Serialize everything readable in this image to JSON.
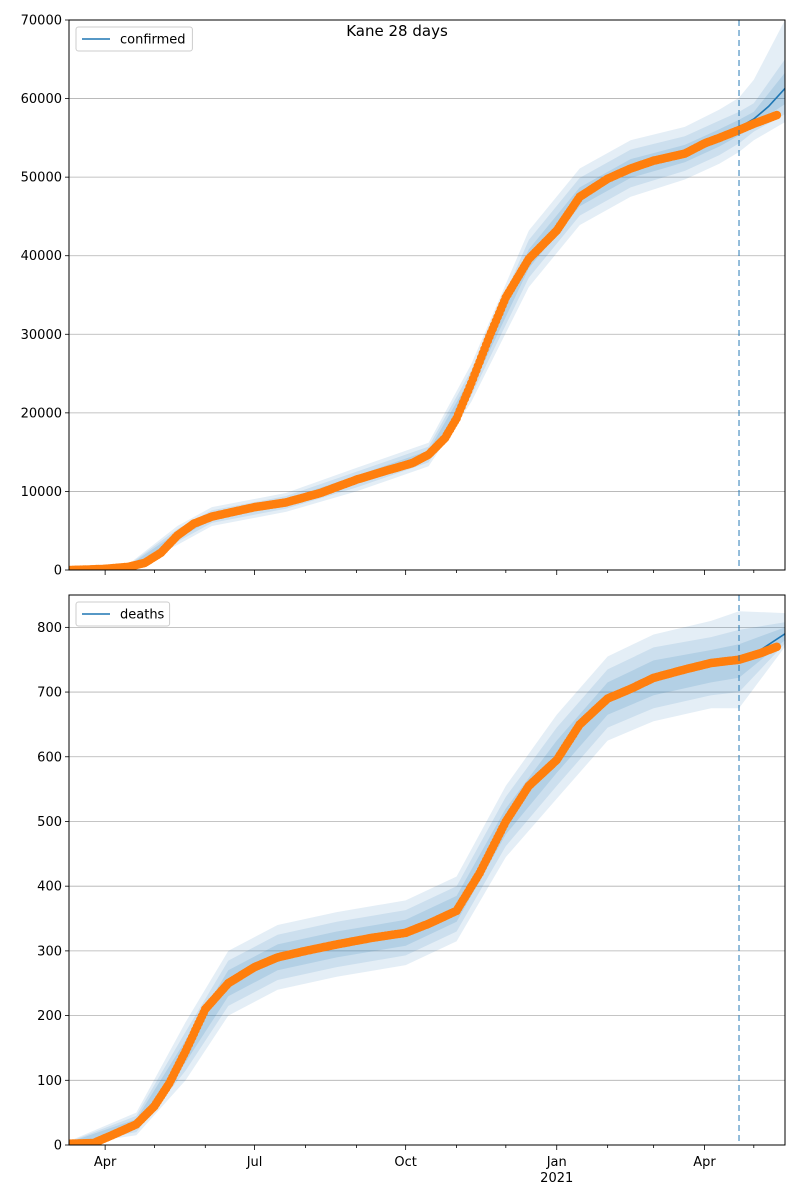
{
  "chart_data": [
    {
      "type": "line",
      "title": "Kane 28 days",
      "xlabel": "",
      "ylabel": "",
      "x_unit": "date",
      "xlim": [
        "2020-03-10",
        "2021-05-20"
      ],
      "ylim": [
        0,
        70000
      ],
      "yticks": [
        0,
        10000,
        20000,
        30000,
        40000,
        50000,
        60000,
        70000
      ],
      "grid": "y",
      "legend": {
        "position": "top-left",
        "entries": [
          "confirmed"
        ]
      },
      "forecast_start": "2021-04-22",
      "series": [
        {
          "name": "confirmed",
          "role": "model",
          "color": "#1f77b4",
          "x": [
            "2020-03-10",
            "2020-03-20",
            "2020-04-01",
            "2020-04-15",
            "2020-04-25",
            "2020-05-05",
            "2020-05-15",
            "2020-05-25",
            "2020-06-05",
            "2020-06-20",
            "2020-07-01",
            "2020-07-20",
            "2020-08-10",
            "2020-09-01",
            "2020-09-20",
            "2020-10-05",
            "2020-10-15",
            "2020-10-25",
            "2020-11-01",
            "2020-11-10",
            "2020-11-20",
            "2020-12-01",
            "2020-12-15",
            "2021-01-01",
            "2021-01-15",
            "2021-02-01",
            "2021-02-15",
            "2021-03-01",
            "2021-03-20",
            "2021-04-01",
            "2021-04-10",
            "2021-04-22",
            "2021-05-01",
            "2021-05-10",
            "2021-05-20"
          ],
          "y": [
            0,
            50,
            150,
            400,
            900,
            2200,
            4400,
            5900,
            6800,
            7500,
            8000,
            8600,
            9800,
            11500,
            12700,
            13600,
            14700,
            16800,
            19300,
            23800,
            29200,
            34700,
            39600,
            43200,
            47500,
            49800,
            51100,
            52100,
            53000,
            54300,
            55000,
            56300,
            57400,
            59000,
            61300
          ]
        },
        {
          "name": "confirmed",
          "role": "observed",
          "color": "#ff7f0e",
          "x": [
            "2020-03-10",
            "2020-03-20",
            "2020-04-01",
            "2020-04-15",
            "2020-04-25",
            "2020-05-05",
            "2020-05-15",
            "2020-05-25",
            "2020-06-05",
            "2020-06-20",
            "2020-07-01",
            "2020-07-20",
            "2020-08-10",
            "2020-09-01",
            "2020-09-20",
            "2020-10-05",
            "2020-10-15",
            "2020-10-25",
            "2020-11-01",
            "2020-11-10",
            "2020-11-20",
            "2020-12-01",
            "2020-12-15",
            "2021-01-01",
            "2021-01-15",
            "2021-02-01",
            "2021-02-15",
            "2021-03-01",
            "2021-03-20",
            "2021-04-01",
            "2021-04-10",
            "2021-04-22",
            "2021-05-01",
            "2021-05-10",
            "2021-05-15"
          ],
          "y": [
            0,
            50,
            150,
            400,
            900,
            2200,
            4400,
            5900,
            6800,
            7500,
            8000,
            8600,
            9800,
            11500,
            12700,
            13600,
            14700,
            16800,
            19300,
            23800,
            29200,
            34700,
            39600,
            43200,
            47500,
            49800,
            51100,
            52100,
            53000,
            54300,
            55000,
            56000,
            56800,
            57500,
            57900
          ]
        }
      ],
      "bands": [
        {
          "level": "inner",
          "x": [
            "2020-03-10",
            "2020-04-15",
            "2020-05-15",
            "2020-06-05",
            "2020-07-20",
            "2020-09-01",
            "2020-10-15",
            "2020-11-10",
            "2020-12-15",
            "2021-01-15",
            "2021-02-15",
            "2021-03-20",
            "2021-04-10",
            "2021-04-22",
            "2021-05-01",
            "2021-05-20"
          ],
          "lower": [
            0,
            300,
            4000,
            6400,
            8200,
            11000,
            14200,
            23000,
            38400,
            46300,
            49900,
            51900,
            53900,
            55300,
            56700,
            59300
          ],
          "upper": [
            0,
            500,
            4800,
            7200,
            9000,
            12000,
            15200,
            24600,
            40800,
            48700,
            52300,
            54100,
            56100,
            57300,
            58300,
            63300
          ]
        },
        {
          "level": "middle",
          "x": [
            "2020-03-10",
            "2020-04-15",
            "2020-05-15",
            "2020-06-05",
            "2020-07-20",
            "2020-09-01",
            "2020-10-15",
            "2020-11-10",
            "2020-12-15",
            "2021-01-15",
            "2021-02-15",
            "2021-03-20",
            "2021-04-10",
            "2021-04-22",
            "2021-05-01",
            "2021-05-20"
          ],
          "lower": [
            0,
            200,
            3600,
            6000,
            7800,
            10500,
            13700,
            22200,
            37200,
            45100,
            48700,
            50800,
            52800,
            54300,
            55800,
            58000
          ],
          "upper": [
            0,
            600,
            5200,
            7600,
            9400,
            12500,
            15700,
            25400,
            42000,
            49900,
            53500,
            55200,
            57200,
            58300,
            59400,
            65000
          ]
        },
        {
          "level": "outer",
          "x": [
            "2020-03-10",
            "2020-04-15",
            "2020-05-15",
            "2020-06-05",
            "2020-07-20",
            "2020-09-01",
            "2020-10-15",
            "2020-11-10",
            "2020-12-15",
            "2021-01-15",
            "2021-02-15",
            "2021-03-20",
            "2021-04-10",
            "2021-04-22",
            "2021-05-01",
            "2021-05-20"
          ],
          "lower": [
            0,
            100,
            3200,
            5600,
            7400,
            10000,
            13200,
            21400,
            36000,
            43900,
            47500,
            49700,
            51700,
            53200,
            54700,
            57000
          ],
          "upper": [
            0,
            700,
            5600,
            8000,
            9800,
            13000,
            16200,
            26200,
            43200,
            51100,
            54700,
            56400,
            58600,
            60100,
            62400,
            70000
          ]
        }
      ]
    },
    {
      "type": "line",
      "title": "",
      "xlabel": "",
      "ylabel": "",
      "x_unit": "date",
      "xlim": [
        "2020-03-10",
        "2021-05-20"
      ],
      "ylim": [
        0,
        850
      ],
      "yticks": [
        0,
        100,
        200,
        300,
        400,
        500,
        600,
        700,
        800
      ],
      "xticks": [
        "2020-04-01",
        "2020-07-01",
        "2020-10-01",
        "2021-01-01",
        "2021-04-01"
      ],
      "xtick_labels": [
        "Apr",
        "Jul",
        "Oct",
        "Jan",
        "Apr"
      ],
      "xtick_sublabel": {
        "under": "Jan",
        "text": "2021"
      },
      "grid": "y",
      "legend": {
        "position": "top-left",
        "entries": [
          "deaths"
        ]
      },
      "forecast_start": "2021-04-22",
      "series": [
        {
          "name": "deaths",
          "role": "model",
          "color": "#1f77b4",
          "x": [
            "2020-03-10",
            "2020-03-25",
            "2020-04-05",
            "2020-04-20",
            "2020-05-01",
            "2020-05-10",
            "2020-05-20",
            "2020-06-01",
            "2020-06-15",
            "2020-07-01",
            "2020-07-15",
            "2020-08-01",
            "2020-08-20",
            "2020-09-10",
            "2020-10-01",
            "2020-10-15",
            "2020-11-01",
            "2020-11-15",
            "2020-12-01",
            "2020-12-15",
            "2021-01-01",
            "2021-01-15",
            "2021-02-01",
            "2021-02-15",
            "2021-03-01",
            "2021-03-20",
            "2021-04-05",
            "2021-04-22",
            "2021-05-05",
            "2021-05-20"
          ],
          "y": [
            2,
            3,
            15,
            32,
            60,
            95,
            145,
            210,
            250,
            275,
            290,
            300,
            310,
            318,
            328,
            340,
            365,
            420,
            500,
            555,
            600,
            650,
            690,
            710,
            722,
            732,
            740,
            748,
            765,
            790
          ]
        },
        {
          "name": "deaths",
          "role": "observed",
          "color": "#ff7f0e",
          "x": [
            "2020-03-10",
            "2020-03-25",
            "2020-04-05",
            "2020-04-20",
            "2020-05-01",
            "2020-05-10",
            "2020-05-20",
            "2020-06-01",
            "2020-06-15",
            "2020-07-01",
            "2020-07-15",
            "2020-08-01",
            "2020-08-20",
            "2020-09-10",
            "2020-10-01",
            "2020-10-15",
            "2020-11-01",
            "2020-11-15",
            "2020-12-01",
            "2020-12-15",
            "2021-01-01",
            "2021-01-15",
            "2021-02-01",
            "2021-02-15",
            "2021-03-01",
            "2021-03-20",
            "2021-04-05",
            "2021-04-22",
            "2021-05-05",
            "2021-05-15"
          ],
          "y": [
            2,
            3,
            15,
            32,
            60,
            95,
            145,
            210,
            250,
            275,
            290,
            300,
            310,
            320,
            328,
            342,
            362,
            420,
            500,
            555,
            595,
            650,
            690,
            705,
            722,
            735,
            745,
            750,
            760,
            770
          ]
        }
      ],
      "bands": [
        {
          "level": "inner",
          "x": [
            "2020-03-10",
            "2020-04-20",
            "2020-05-20",
            "2020-06-15",
            "2020-07-15",
            "2020-08-20",
            "2020-10-01",
            "2020-11-01",
            "2020-12-01",
            "2021-01-01",
            "2021-02-01",
            "2021-03-01",
            "2021-04-05",
            "2021-04-22",
            "2021-05-20"
          ],
          "lower": [
            0,
            25,
            128,
            230,
            270,
            290,
            308,
            345,
            480,
            575,
            665,
            695,
            715,
            722,
            780
          ],
          "upper": [
            4,
            40,
            162,
            270,
            310,
            330,
            348,
            385,
            520,
            625,
            715,
            749,
            765,
            774,
            800
          ]
        },
        {
          "level": "middle",
          "x": [
            "2020-03-10",
            "2020-04-20",
            "2020-05-20",
            "2020-06-15",
            "2020-07-15",
            "2020-08-20",
            "2020-10-01",
            "2020-11-01",
            "2020-12-01",
            "2021-01-01",
            "2021-02-01",
            "2021-03-01",
            "2021-04-05",
            "2021-04-22",
            "2021-05-20"
          ],
          "lower": [
            0,
            20,
            115,
            215,
            255,
            275,
            293,
            330,
            462,
            555,
            645,
            675,
            695,
            700,
            775
          ],
          "upper": [
            5,
            45,
            175,
            285,
            325,
            345,
            363,
            400,
            538,
            645,
            735,
            769,
            785,
            796,
            808
          ]
        },
        {
          "level": "outer",
          "x": [
            "2020-03-10",
            "2020-04-20",
            "2020-05-20",
            "2020-06-15",
            "2020-07-15",
            "2020-08-20",
            "2020-10-01",
            "2020-11-01",
            "2020-12-01",
            "2021-01-01",
            "2021-02-01",
            "2021-03-01",
            "2021-04-05",
            "2021-04-22",
            "2021-05-20"
          ],
          "lower": [
            0,
            15,
            100,
            200,
            240,
            260,
            278,
            315,
            445,
            535,
            625,
            655,
            675,
            675,
            770
          ],
          "upper": [
            6,
            50,
            190,
            300,
            340,
            360,
            378,
            415,
            555,
            665,
            755,
            789,
            810,
            825,
            822
          ]
        }
      ]
    }
  ]
}
